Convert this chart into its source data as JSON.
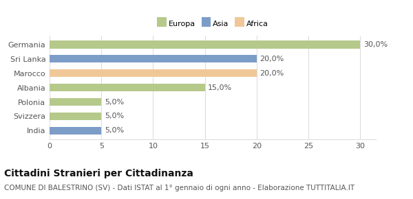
{
  "categories": [
    "India",
    "Svizzera",
    "Polonia",
    "Albania",
    "Marocco",
    "Sri Lanka",
    "Germania"
  ],
  "values": [
    5.0,
    5.0,
    5.0,
    15.0,
    20.0,
    20.0,
    30.0
  ],
  "colors": [
    "#7b9dc7",
    "#b5c98a",
    "#b5c98a",
    "#b5c98a",
    "#f0c898",
    "#7b9dc7",
    "#b5c98a"
  ],
  "continents": [
    "Asia",
    "Europa",
    "Europa",
    "Europa",
    "Africa",
    "Asia",
    "Europa"
  ],
  "legend_labels": [
    "Europa",
    "Asia",
    "Africa"
  ],
  "legend_colors": [
    "#b5c98a",
    "#7b9dc7",
    "#f0c898"
  ],
  "xlim": [
    0,
    30
  ],
  "xticks": [
    0,
    5,
    10,
    15,
    20,
    25,
    30
  ],
  "title": "Cittadini Stranieri per Cittadinanza",
  "subtitle": "COMUNE DI BALESTRINO (SV) - Dati ISTAT al 1° gennaio di ogni anno - Elaborazione TUTTITALIA.IT",
  "title_fontsize": 10,
  "subtitle_fontsize": 7.5,
  "label_fontsize": 8,
  "tick_fontsize": 8,
  "bar_height": 0.55,
  "background_color": "#ffffff",
  "grid_color": "#dddddd",
  "text_color": "#555555",
  "title_color": "#111111"
}
